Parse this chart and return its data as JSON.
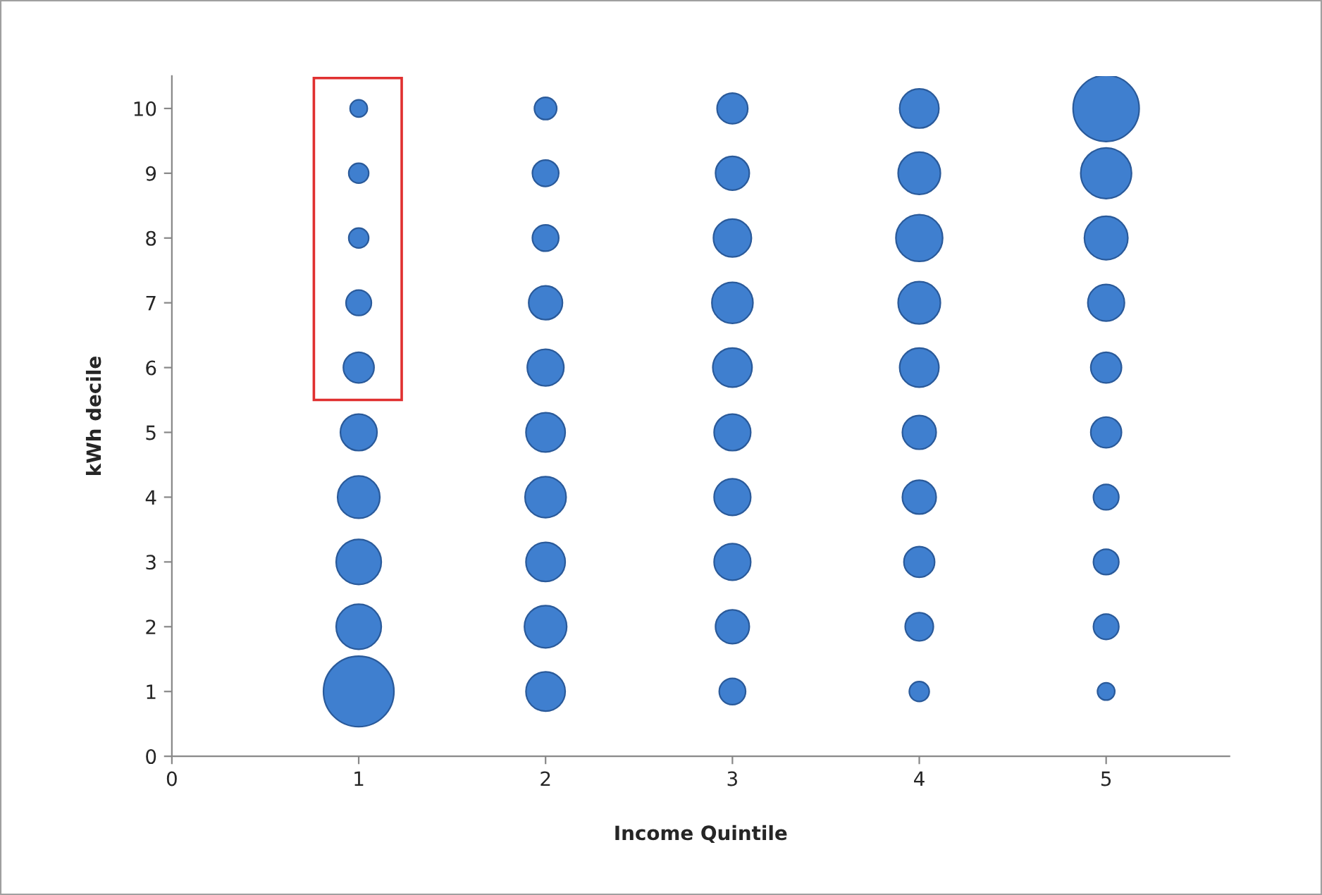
{
  "chart_data": {
    "type": "bubble",
    "xlabel": "Income Quintile",
    "ylabel": "kWh decile",
    "x": [
      1,
      1,
      1,
      1,
      1,
      1,
      1,
      1,
      1,
      1,
      2,
      2,
      2,
      2,
      2,
      2,
      2,
      2,
      2,
      2,
      3,
      3,
      3,
      3,
      3,
      3,
      3,
      3,
      3,
      3,
      4,
      4,
      4,
      4,
      4,
      4,
      4,
      4,
      4,
      4,
      5,
      5,
      5,
      5,
      5,
      5,
      5,
      5,
      5,
      5
    ],
    "series": [
      {
        "color": "#3f7fcf",
        "values": [
          10,
          9,
          8,
          7,
          6,
          5,
          4,
          3,
          2,
          1,
          10,
          9,
          8,
          7,
          6,
          5,
          4,
          3,
          2,
          1,
          10,
          9,
          8,
          7,
          6,
          5,
          4,
          3,
          2,
          1,
          10,
          9,
          8,
          7,
          6,
          5,
          4,
          3,
          2,
          1,
          10,
          9,
          8,
          7,
          6,
          5,
          4,
          3,
          2,
          1
        ],
        "sizes": [
          0.06,
          0.08,
          0.08,
          0.13,
          0.19,
          0.27,
          0.36,
          0.41,
          0.41,
          1,
          0.1,
          0.14,
          0.14,
          0.23,
          0.27,
          0.31,
          0.34,
          0.31,
          0.36,
          0.31,
          0.19,
          0.23,
          0.29,
          0.34,
          0.31,
          0.27,
          0.27,
          0.27,
          0.23,
          0.14,
          0.31,
          0.36,
          0.44,
          0.36,
          0.31,
          0.23,
          0.23,
          0.19,
          0.16,
          0.08,
          0.88,
          0.52,
          0.38,
          0.27,
          0.19,
          0.19,
          0.13,
          0.13,
          0.13,
          0.06
        ]
      }
    ],
    "xlim": [
      0,
      5.66
    ],
    "ylim": [
      0,
      10.5
    ],
    "xticks": [
      0,
      1,
      2,
      3,
      4,
      5
    ],
    "yticks": [
      0,
      1,
      2,
      3,
      4,
      5,
      6,
      7,
      8,
      9,
      10
    ],
    "grid": false,
    "legend": false
  }
}
